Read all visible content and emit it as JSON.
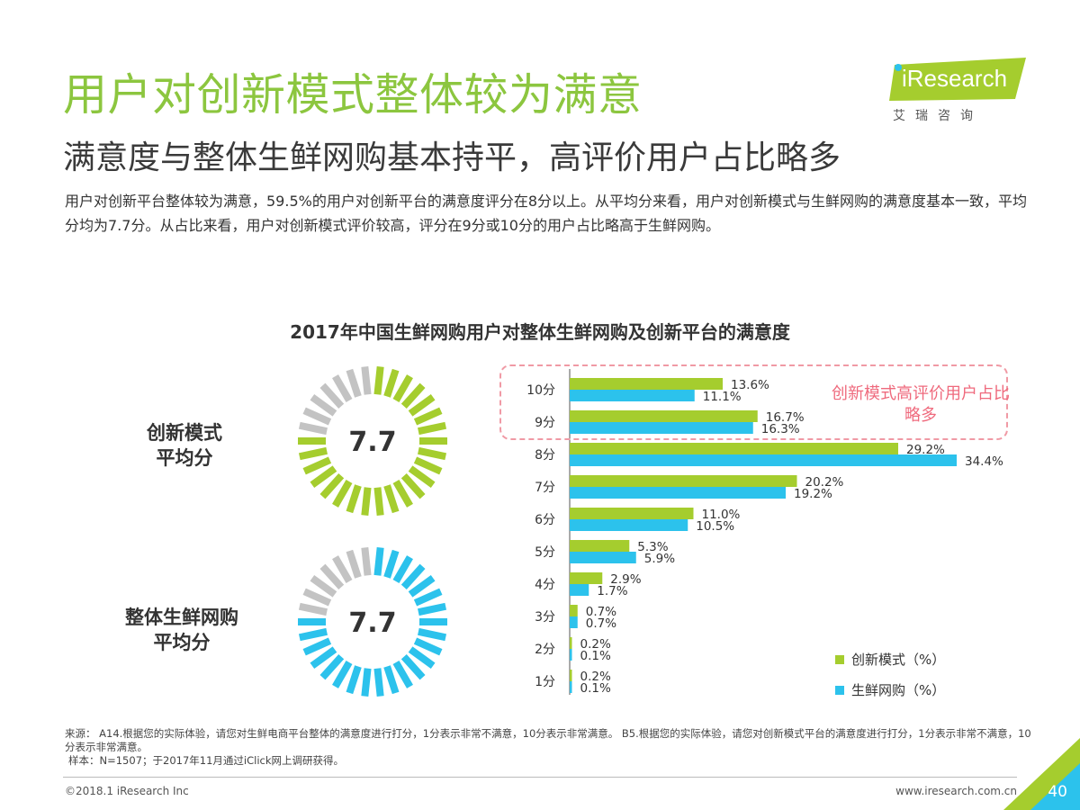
{
  "header": {
    "title": "用户对创新模式整体较为满意",
    "subtitle": "满意度与整体生鲜网购基本持平，高评价用户占比略多",
    "intro": "用户对创新平台整体较为满意，59.5%的用户对创新平台的满意度评分在8分以上。从平均分来看，用户对创新模式与生鲜网购的满意度基本一致，平均分均为7.7分。从占比来看，用户对创新模式评价较高，评分在9分或10分的用户占比略高于生鲜网购。"
  },
  "logo": {
    "text": "iResearch",
    "cn": "艾瑞咨询"
  },
  "gauges": [
    {
      "label_line1": "创新模式",
      "label_line2": "平均分",
      "value": "7.7",
      "score": 7.7,
      "color": "#a5cd2e"
    },
    {
      "label_line1": "整体生鲜网购",
      "label_line2": "平均分",
      "value": "7.7",
      "score": 7.7,
      "color": "#2cc2ec"
    }
  ],
  "gauge_inactive_color": "#c3c3c3",
  "callout": {
    "text": "创新模式高评价用户占比略多"
  },
  "chart_data": {
    "type": "bar",
    "title": "2017年中国生鲜网购用户对整体生鲜网购及创新平台的满意度",
    "categories": [
      "10分",
      "9分",
      "8分",
      "7分",
      "6分",
      "5分",
      "4分",
      "3分",
      "2分",
      "1分"
    ],
    "series": [
      {
        "name": "创新模式（%）",
        "color": "#a5cd2e",
        "values": [
          13.6,
          16.7,
          29.2,
          20.2,
          11.0,
          5.3,
          2.9,
          0.7,
          0.2,
          0.2
        ]
      },
      {
        "name": "生鲜网购（%）",
        "color": "#2cc2ec",
        "values": [
          11.1,
          16.3,
          34.4,
          19.2,
          10.5,
          5.9,
          1.7,
          0.7,
          0.1,
          0.1
        ]
      }
    ],
    "legend_position": "bottom-right",
    "grid": false
  },
  "footer": {
    "source_line1": "来源： A14.根据您的实际体验，请您对生鲜电商平台整体的满意度进行打分，1分表示非常不满意，10分表示非常满意。 B5.根据您的实际体验，请您对创新模式平台的满意度进行打分，1分表示非常不满意，10分表示非常满意。",
    "source_line2": "样本：N=1507；于2017年11月通过iClick网上调研获得。",
    "copyright": "©2018.1 iResearch Inc",
    "website": "www.iresearch.com.cn",
    "page": "40"
  }
}
